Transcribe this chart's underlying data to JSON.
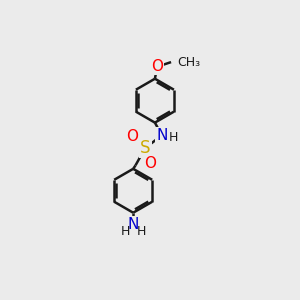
{
  "bg_color": "#ebebeb",
  "bond_color": "#1a1a1a",
  "bond_width": 1.8,
  "atom_colors": {
    "O": "#ff0000",
    "N": "#0000cc",
    "S": "#ccaa00",
    "C": "#1a1a1a",
    "H": "#1a1a1a"
  },
  "font_size_large": 11,
  "font_size_small": 9,
  "ring_r": 0.95,
  "figsize": [
    3.0,
    3.0
  ],
  "dpi": 100
}
